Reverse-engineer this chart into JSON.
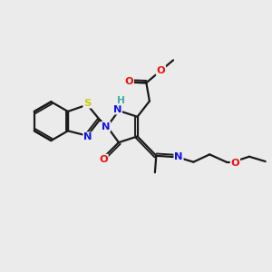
{
  "bg_color": "#ebebeb",
  "bond_color": "#1a1a1a",
  "bond_width": 1.6,
  "dbo": 0.08,
  "atom_colors": {
    "N": "#1010ee",
    "O": "#ee1010",
    "S": "#cccc00",
    "H": "#44aaaa",
    "C": "#1a1a1a"
  },
  "fs": 8.5,
  "fss": 7.2
}
